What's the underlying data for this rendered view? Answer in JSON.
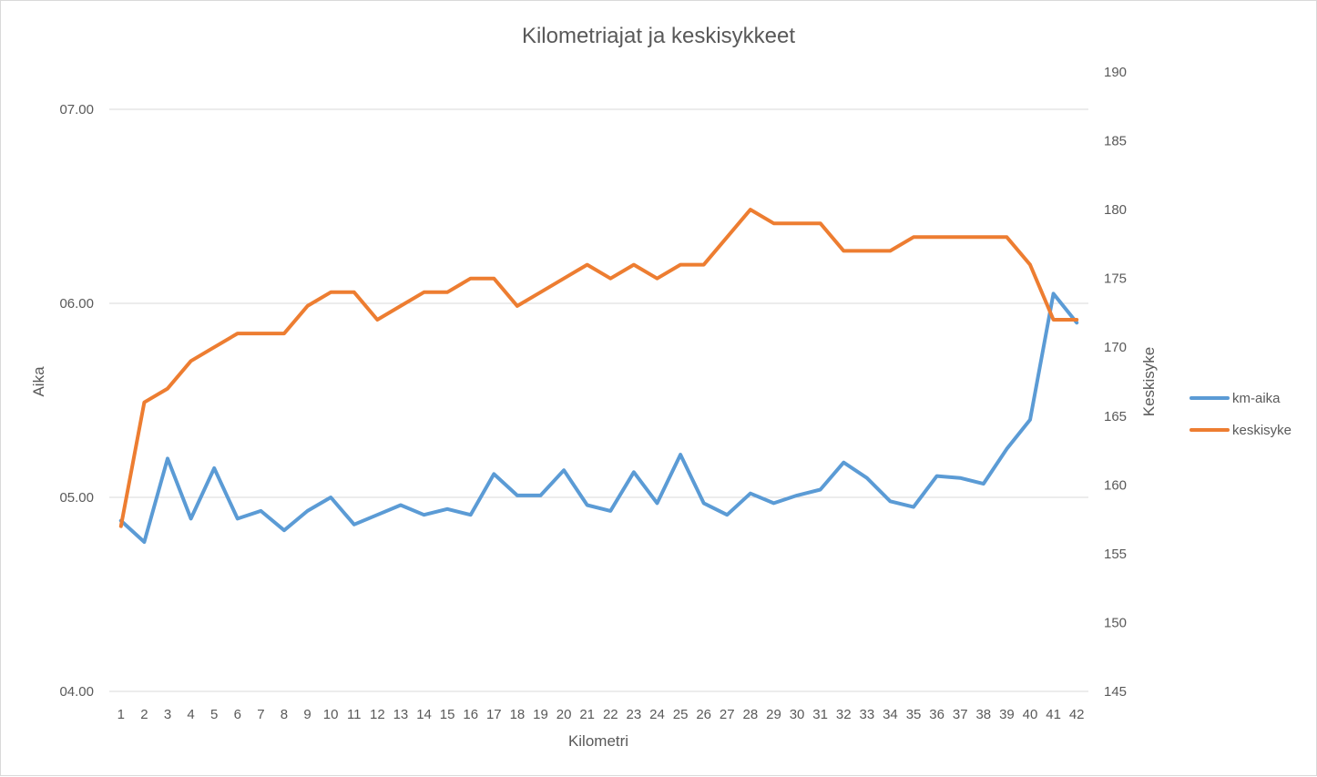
{
  "chart_data": {
    "type": "line",
    "title": "Kilometriajat ja keskisykkeet",
    "xlabel": "Kilometri",
    "ylabel": "Aika",
    "y2label": "Keskisyke",
    "categories": [
      "1",
      "2",
      "3",
      "4",
      "5",
      "6",
      "7",
      "8",
      "9",
      "10",
      "11",
      "12",
      "13",
      "14",
      "15",
      "16",
      "17",
      "18",
      "19",
      "20",
      "21",
      "22",
      "23",
      "24",
      "25",
      "26",
      "27",
      "28",
      "29",
      "30",
      "31",
      "32",
      "33",
      "34",
      "35",
      "36",
      "37",
      "38",
      "39",
      "40",
      "41",
      "42"
    ],
    "y_ticks": [
      "04.00",
      "05.00",
      "06.00",
      "07.00"
    ],
    "y_tick_values": [
      4.0,
      5.0,
      6.0,
      7.0
    ],
    "ylim": [
      4.0,
      7.0
    ],
    "y2_ticks": [
      "145",
      "150",
      "155",
      "160",
      "165",
      "170",
      "175",
      "180",
      "185",
      "190"
    ],
    "y2lim": [
      145,
      190
    ],
    "grid": true,
    "legend_position": "right",
    "series": [
      {
        "name": "km-aika",
        "axis": "left",
        "color": "#5b9bd5",
        "values": [
          4.88,
          4.77,
          5.2,
          4.89,
          5.15,
          4.89,
          4.93,
          4.83,
          4.93,
          5.0,
          4.86,
          4.91,
          4.96,
          4.91,
          4.94,
          4.91,
          5.12,
          5.01,
          5.01,
          5.14,
          4.96,
          4.93,
          5.13,
          4.97,
          5.22,
          4.97,
          4.91,
          5.02,
          4.97,
          5.01,
          5.04,
          5.18,
          5.1,
          4.98,
          4.95,
          5.11,
          5.1,
          5.07,
          5.25,
          5.4,
          6.05,
          5.9
        ]
      },
      {
        "name": "keskisyke",
        "axis": "right",
        "color": "#ed7d31",
        "values": [
          157,
          166,
          167,
          169,
          170,
          171,
          171,
          171,
          173,
          174,
          174,
          172,
          173,
          174,
          174,
          175,
          175,
          173,
          174,
          175,
          176,
          175,
          176,
          175,
          176,
          176,
          178,
          180,
          179,
          179,
          179,
          177,
          177,
          177,
          178,
          178,
          178,
          178,
          178,
          176,
          172,
          172
        ]
      }
    ]
  }
}
